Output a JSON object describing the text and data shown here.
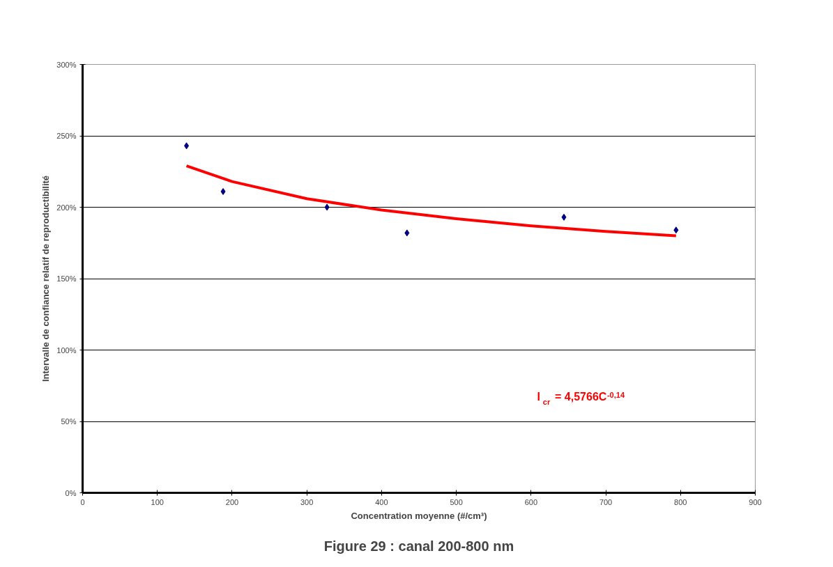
{
  "chart_data": {
    "type": "scatter",
    "xlabel": "Concentration moyenne (#/cm³)",
    "ylabel": "Intervalle de confiance relatif de reproductibilité",
    "xlim": [
      0,
      900
    ],
    "xticks": [
      0,
      100,
      200,
      300,
      400,
      500,
      600,
      700,
      800,
      900
    ],
    "ylim": [
      0,
      300
    ],
    "yticks": [
      {
        "value": 0,
        "label": "0%"
      },
      {
        "value": 50,
        "label": "50%"
      },
      {
        "value": 100,
        "label": "100%"
      },
      {
        "value": 150,
        "label": "150%"
      },
      {
        "value": 200,
        "label": "200%"
      },
      {
        "value": 250,
        "label": "250%"
      },
      {
        "value": 300,
        "label": "300%"
      }
    ],
    "grid": "y",
    "marker": "diamond",
    "series": [
      {
        "type": "scatter",
        "color": "#000080",
        "x": [
          139,
          188,
          327,
          434,
          644,
          794
        ],
        "values": [
          243,
          211,
          200,
          182,
          193,
          184
        ]
      },
      {
        "type": "line",
        "color": "#ff0000",
        "marker": "none",
        "line_style": "solid",
        "x": [
          139,
          200,
          300,
          400,
          500,
          600,
          700,
          794
        ],
        "values": [
          229,
          218,
          206,
          198,
          192,
          187,
          183,
          180
        ]
      }
    ],
    "annotations": [
      "I$_{cr}$ = 4,5766C$^{-0,14}$",
      "Figure 29 : canal 200-800 nm"
    ]
  }
}
